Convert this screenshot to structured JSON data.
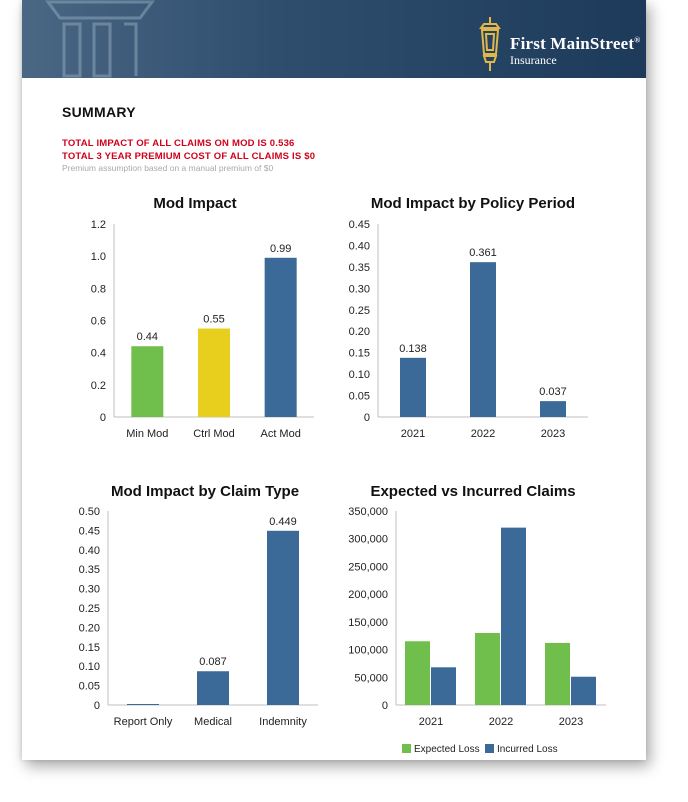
{
  "brand": {
    "name": "First MainStreet",
    "registered": "®",
    "sub": "Insurance"
  },
  "summary": {
    "title": "SUMMARY",
    "line1": "TOTAL IMPACT OF ALL CLAIMS ON MOD IS 0.536",
    "line2": "TOTAL 3 YEAR PREMIUM COST OF ALL CLAIMS IS $0",
    "note": "Premium assumption based on a manual premium of $0"
  },
  "colors": {
    "green": "#70bf4c",
    "yellow": "#e8cf1e",
    "blue": "#3b6998",
    "red": "#d0021b",
    "banner": "#2f4e6e"
  },
  "chart_data": [
    {
      "type": "bar",
      "title": "Mod Impact",
      "categories": [
        "Min Mod",
        "Ctrl Mod",
        "Act Mod"
      ],
      "values": [
        0.44,
        0.55,
        0.99
      ],
      "labels": [
        "0.44",
        "0.55",
        "0.99"
      ],
      "bar_colors": [
        "#70bf4c",
        "#e8cf1e",
        "#3b6998"
      ],
      "ylim": [
        0,
        1.2
      ],
      "yticks": [
        0,
        0.2,
        0.4,
        0.6,
        0.8,
        1.0,
        1.2
      ],
      "yticklabels": [
        "0",
        "0.2",
        "0.4",
        "0.6",
        "0.8",
        "1.0",
        "1.2"
      ],
      "grid": false
    },
    {
      "type": "bar",
      "title": "Mod Impact by Policy Period",
      "categories": [
        "2021",
        "2022",
        "2023"
      ],
      "values": [
        0.138,
        0.361,
        0.037
      ],
      "labels": [
        "0.138",
        "0.361",
        "0.037"
      ],
      "bar_colors": [
        "#3b6998",
        "#3b6998",
        "#3b6998"
      ],
      "ylim": [
        0,
        0.45
      ],
      "yticks": [
        0,
        0.05,
        0.1,
        0.15,
        0.2,
        0.25,
        0.3,
        0.35,
        0.4,
        0.45
      ],
      "yticklabels": [
        "0",
        "0.05",
        "0.10",
        "0.15",
        "0.20",
        "0.25",
        "0.30",
        "0.35",
        "0.40",
        "0.45"
      ],
      "grid": false
    },
    {
      "type": "bar",
      "title": "Mod Impact by Claim Type",
      "categories": [
        "Report Only",
        "Medical",
        "Indemnity"
      ],
      "values": [
        0.0,
        0.087,
        0.449
      ],
      "labels": [
        "",
        "0.087",
        "0.449"
      ],
      "bar_colors": [
        "#3b6998",
        "#3b6998",
        "#3b6998"
      ],
      "ylim": [
        0,
        0.5
      ],
      "yticks": [
        0,
        0.05,
        0.1,
        0.15,
        0.2,
        0.25,
        0.3,
        0.35,
        0.4,
        0.45,
        0.5
      ],
      "yticklabels": [
        "0",
        "0.05",
        "0.10",
        "0.15",
        "0.20",
        "0.25",
        "0.30",
        "0.35",
        "0.40",
        "0.45",
        "0.50"
      ],
      "grid": false
    },
    {
      "type": "bar",
      "title": "Expected vs Incurred Claims",
      "categories": [
        "2021",
        "2022",
        "2023"
      ],
      "series": [
        {
          "name": "Expected Loss",
          "color": "#70bf4c",
          "values": [
            115000,
            130000,
            112000
          ]
        },
        {
          "name": "Incurred Loss",
          "color": "#3b6998",
          "values": [
            68000,
            320000,
            51000
          ]
        }
      ],
      "ylim": [
        0,
        350000
      ],
      "yticks": [
        0,
        50000,
        100000,
        150000,
        200000,
        250000,
        300000,
        350000
      ],
      "yticklabels": [
        "0",
        "50,000",
        "100,000",
        "150,000",
        "200,000",
        "250,000",
        "300,000",
        "350,000"
      ],
      "legend": "bottom",
      "grid": false
    }
  ]
}
